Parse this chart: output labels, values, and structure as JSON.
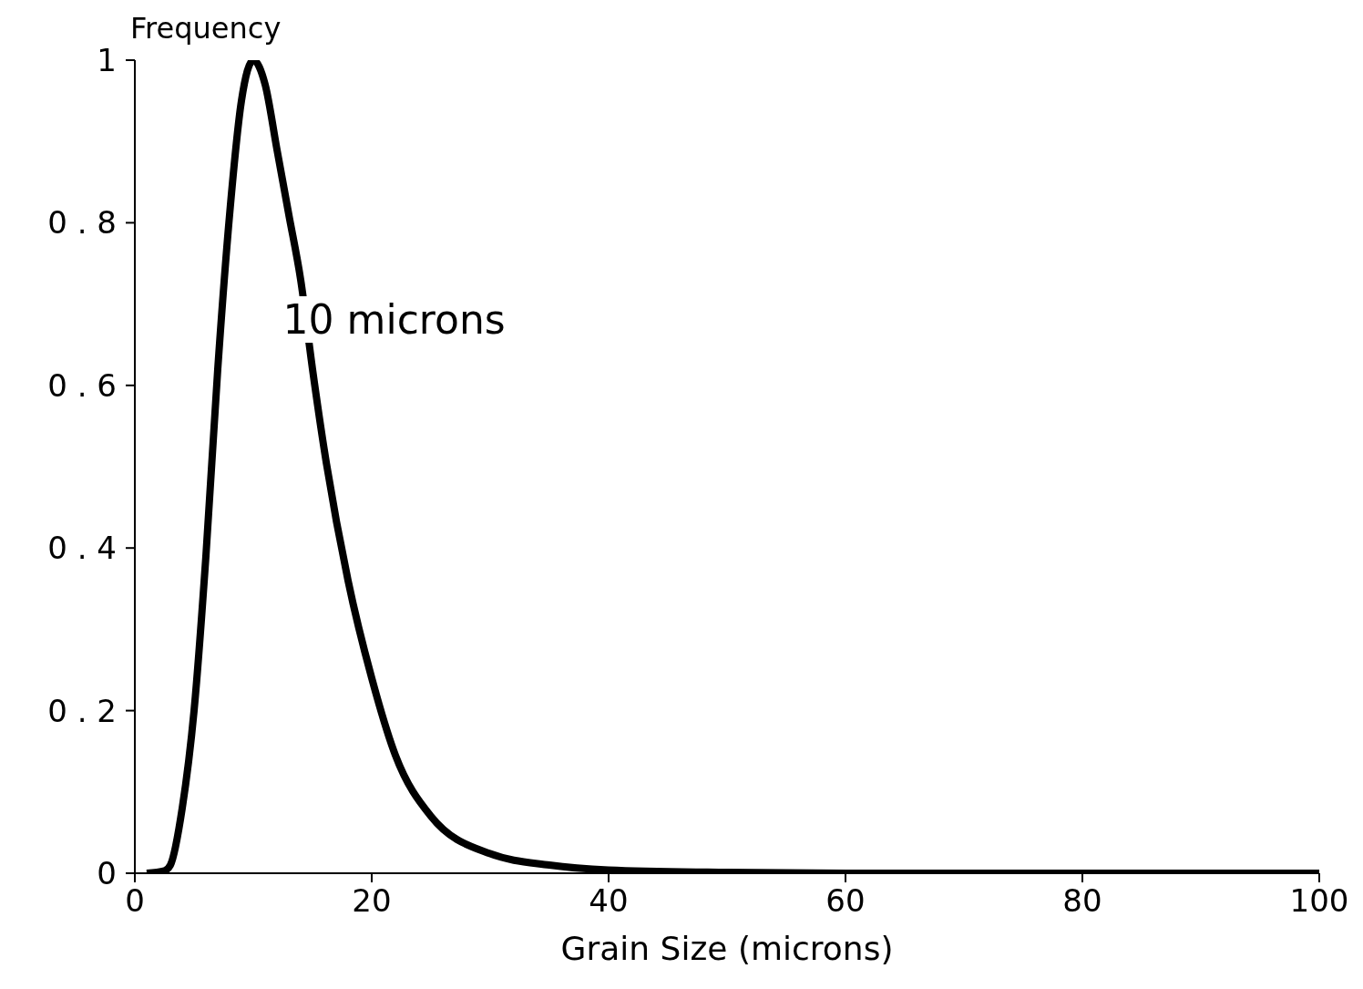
{
  "chart_data": {
    "type": "line",
    "xlabel": "Grain Size (microns)",
    "ylabel": "Frequency",
    "annotations": [
      "10 microns"
    ],
    "x": [
      1,
      2.5,
      3,
      4,
      5,
      6,
      7,
      8,
      9,
      10,
      11,
      12,
      13,
      14,
      15,
      16,
      18,
      20,
      22,
      25,
      30,
      35,
      40,
      50,
      60,
      70,
      80,
      90,
      100
    ],
    "series": [
      {
        "color": "#000000",
        "values": [
          0,
          0.003,
          0.01,
          0.08,
          0.2,
          0.39,
          0.62,
          0.81,
          0.95,
          1,
          0.97,
          0.89,
          0.81,
          0.73,
          0.62,
          0.52,
          0.36,
          0.24,
          0.145,
          0.07,
          0.024,
          0.01,
          0.004,
          0.001,
          0,
          0,
          0,
          0,
          0
        ]
      }
    ],
    "xlim": [
      0,
      100
    ],
    "xticks": [
      0,
      20,
      40,
      60,
      80,
      100
    ],
    "ylim": [
      0,
      1
    ],
    "yticks": [
      0,
      {
        "value": 0.2,
        "label": "0 . 2"
      },
      {
        "value": 0.4,
        "label": "0 . 4"
      },
      {
        "value": 0.6,
        "label": "0 . 6"
      },
      {
        "value": 0.8,
        "label": "0 . 8"
      },
      1
    ],
    "line_style": "solid"
  }
}
